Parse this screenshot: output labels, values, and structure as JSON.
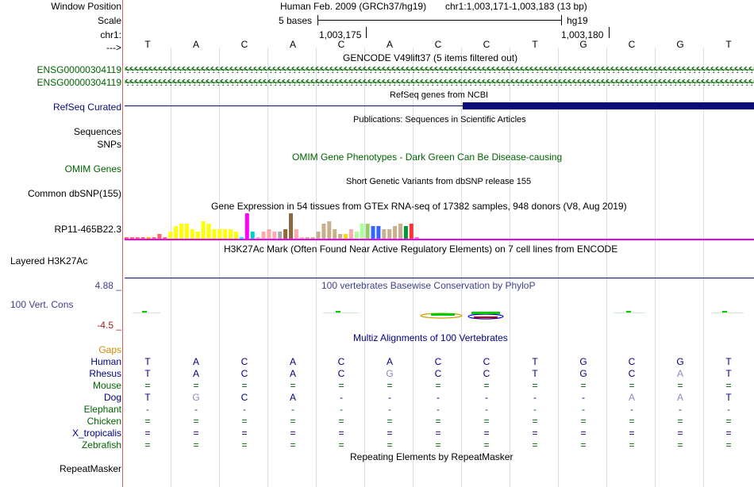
{
  "labels": {
    "window_position": "Window Position",
    "scale": "Scale",
    "chrom": "chr1:",
    "strand": "--->",
    "gencode_1": "ENSG00000304119",
    "gencode_2": "ENSG00000304119",
    "refseq": "RefSeq Curated",
    "sequences": "Sequences",
    "snps": "SNPs",
    "omim": "OMIM Genes",
    "dbsnp": "Common dbSNP(155)",
    "gtex_gene": "RP11-465B22.3",
    "h3k27ac": "Layered H3K27Ac",
    "cons_max": "4.88 _",
    "cons_label": "100 Vert. Cons",
    "cons_min": "-4.5 _",
    "gaps": "Gaps",
    "repeatmasker": "RepeatMasker"
  },
  "colors": {
    "label_green": "#006400",
    "label_navy": "#000080",
    "cons_blue": "#3f3f8f",
    "refseq_navy": "#0c0c78",
    "h3k27ac_magenta": "#ee00ee",
    "neg_red": "#9f1f1f",
    "gaps_orange": "#d28a00"
  },
  "ruler": {
    "assembly": "Human Feb. 2009 (GRCh37/hg19)",
    "region": "chr1:1,003,171-1,003,183 (13 bp)",
    "scale_bar": "5 bases",
    "db": "hg19",
    "tick1": "1,003,175",
    "tick2": "1,003,180"
  },
  "bases": [
    "T",
    "A",
    "C",
    "A",
    "C",
    "A",
    "C",
    "C",
    "T",
    "G",
    "C",
    "G",
    "T"
  ],
  "track_titles": {
    "gencode": "GENCODE V49lift37 (5 items filtered out)",
    "refseq": "RefSeq genes from NCBI",
    "publications": "Publications: Sequences in Scientific Articles",
    "omim": "OMIM Gene Phenotypes - Dark Green Can Be Disease-causing",
    "dbsnp": "Short Genetic Variants from dbSNP release 155",
    "gtex": "Gene Expression in 54 tissues from GTEx RNA-seq of 17382 samples, 948 donors (V8, Aug 2019)",
    "h3k27ac": "H3K27Ac Mark (Often Found Near Active Regulatory Elements) on 7 cell lines from ENCODE",
    "phylop": "100 vertebrates Basewise Conservation by PhyloP",
    "multiz": "Multiz Alignments of 100 Vertebrates",
    "repeatmasker": "Repeating Elements by RepeatMasker"
  },
  "gtex_bars": [
    {
      "color": "#ff6666",
      "value": 0.1
    },
    {
      "color": "#ff6666",
      "value": 0.1
    },
    {
      "color": "#ff6666",
      "value": 0.1
    },
    {
      "color": "#ff6666",
      "value": 0.1
    },
    {
      "color": "#ffaa00",
      "value": 0.1
    },
    {
      "color": "#ff6666",
      "value": 0.1
    },
    {
      "color": "#ff6666",
      "value": 0.2
    },
    {
      "color": "#ff6666",
      "value": 0.1
    },
    {
      "color": "#ffff00",
      "value": 0.3
    },
    {
      "color": "#ffff00",
      "value": 0.5
    },
    {
      "color": "#ffff00",
      "value": 0.6
    },
    {
      "color": "#ffff00",
      "value": 0.6
    },
    {
      "color": "#ffff00",
      "value": 0.4
    },
    {
      "color": "#ffff00",
      "value": 0.3
    },
    {
      "color": "#ffff00",
      "value": 0.7
    },
    {
      "color": "#ffff00",
      "value": 0.6
    },
    {
      "color": "#ffff00",
      "value": 0.4
    },
    {
      "color": "#ffff00",
      "value": 0.4
    },
    {
      "color": "#ffff00",
      "value": 0.4
    },
    {
      "color": "#ffff00",
      "value": 0.4
    },
    {
      "color": "#ffff00",
      "value": 0.3
    },
    {
      "color": "#00ffff",
      "value": 0.1
    },
    {
      "color": "#ff00ff",
      "value": 1.0
    },
    {
      "color": "#00cccc",
      "value": 0.3
    },
    {
      "color": "#ffaaaa",
      "value": 0.1
    },
    {
      "color": "#ffaaaa",
      "value": 0.3
    },
    {
      "color": "#ffaaaa",
      "value": 0.4
    },
    {
      "color": "#ffaaaa",
      "value": 0.3
    },
    {
      "color": "#aaaaaa",
      "value": 0.3
    },
    {
      "color": "#996633",
      "value": 0.4
    },
    {
      "color": "#8b6a3f",
      "value": 1.0
    },
    {
      "color": "#ffaaaa",
      "value": 0.4
    },
    {
      "color": "#ffaaaa",
      "value": 0.1
    },
    {
      "color": "#c8b08c",
      "value": 0.1
    },
    {
      "color": "#c8b08c",
      "value": 0.1
    },
    {
      "color": "#c8b08c",
      "value": 0.3
    },
    {
      "color": "#c8b08c",
      "value": 0.6
    },
    {
      "color": "#c8b08c",
      "value": 0.7
    },
    {
      "color": "#c8b08c",
      "value": 0.4
    },
    {
      "color": "#c8b08c",
      "value": 0.2
    },
    {
      "color": "#ffd700",
      "value": 0.2
    },
    {
      "color": "#ffaaaa",
      "value": 0.4
    },
    {
      "color": "#aaff99",
      "value": 0.3
    },
    {
      "color": "#aaff99",
      "value": 0.6
    },
    {
      "color": "#99cc66",
      "value": 0.6
    },
    {
      "color": "#3366ff",
      "value": 0.5
    },
    {
      "color": "#3366ff",
      "value": 0.5
    },
    {
      "color": "#c8b08c",
      "value": 0.4
    },
    {
      "color": "#c8b08c",
      "value": 0.4
    },
    {
      "color": "#c8b08c",
      "value": 0.5
    },
    {
      "color": "#c8b08c",
      "value": 0.6
    },
    {
      "color": "#009933",
      "value": 0.5
    },
    {
      "color": "#ff3333",
      "value": 0.6
    },
    {
      "color": "#ff66cc",
      "value": 0.1
    }
  ],
  "phylop_colors": {
    "pos": "#00cc00",
    "neg": "#cc0000"
  },
  "alignment": [
    {
      "species": "Human",
      "color": "#000080",
      "row": [
        "T",
        "A",
        "C",
        "A",
        "C",
        "A",
        "C",
        "C",
        "T",
        "G",
        "C",
        "G",
        "T"
      ],
      "light": []
    },
    {
      "species": "Rhesus",
      "color": "#000080",
      "row": [
        "T",
        "A",
        "C",
        "A",
        "C",
        "G",
        "C",
        "C",
        "T",
        "G",
        "C",
        "A",
        "T"
      ],
      "light": [
        5,
        11
      ]
    },
    {
      "species": "Mouse",
      "color": "#006400",
      "row": [
        "=",
        "=",
        "=",
        "=",
        "=",
        "=",
        "=",
        "=",
        "=",
        "=",
        "=",
        "=",
        "="
      ],
      "light": []
    },
    {
      "species": "Dog",
      "color": "#000080",
      "row": [
        "T",
        "G",
        "C",
        "A",
        "-",
        "-",
        "-",
        "-",
        "-",
        "-",
        "A",
        "A",
        "T"
      ],
      "light": [
        1,
        10,
        11
      ]
    },
    {
      "species": "Elephant",
      "color": "#006400",
      "row": [
        "-",
        "-",
        "-",
        "-",
        "-",
        "-",
        "-",
        "-",
        "-",
        "-",
        "-",
        "-",
        "-"
      ],
      "light": []
    },
    {
      "species": "Chicken",
      "color": "#006400",
      "row": [
        "=",
        "=",
        "=",
        "=",
        "=",
        "=",
        "=",
        "=",
        "=",
        "=",
        "=",
        "=",
        "="
      ],
      "light": []
    },
    {
      "species": "X_tropicalis",
      "color": "#000080",
      "row": [
        "=",
        "=",
        "=",
        "=",
        "=",
        "=",
        "=",
        "=",
        "=",
        "=",
        "=",
        "=",
        "="
      ],
      "light": []
    },
    {
      "species": "Zebrafish",
      "color": "#006400",
      "row": [
        "=",
        "=",
        "=",
        "=",
        "=",
        "=",
        "=",
        "=",
        "=",
        "=",
        "=",
        "=",
        "="
      ],
      "light": []
    }
  ]
}
